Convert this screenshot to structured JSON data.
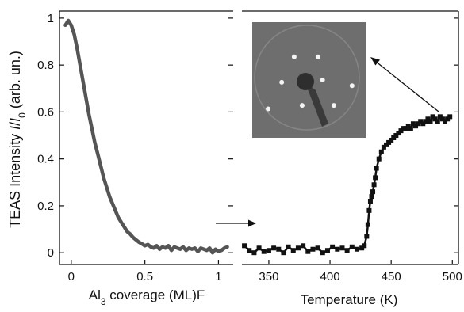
{
  "chart_data": [
    {
      "type": "line",
      "xlabel": "Al3 coverage (ML)F",
      "xlabel_parts": {
        "prefix": "Al",
        "subscript": "3",
        "suffix": " coverage (ML)F"
      },
      "ylabel": "TEAS Intensity  I/I0  (arb. un.)",
      "ylabel_parts": {
        "main": "TEAS Intensity  ",
        "I": "I",
        "slash": "/",
        "I0": "I",
        "sub0": "0",
        "unit": "  (arb. un.)"
      },
      "xlim": [
        -0.08,
        1.1
      ],
      "ylim": [
        -0.05,
        1.03
      ],
      "x_ticks": [
        0,
        0.5,
        1
      ],
      "x_tick_labels": [
        "0",
        "0.5",
        "1"
      ],
      "y_ticks": [
        0,
        0.2,
        0.4,
        0.6,
        0.8,
        1
      ],
      "y_tick_labels": [
        "0",
        "0.2",
        "0.4",
        "0.6",
        "0.8",
        "1"
      ],
      "color": "#555555",
      "series": [
        {
          "x": [
            -0.04,
            -0.02,
            0,
            0.02,
            0.04,
            0.06,
            0.08,
            0.1,
            0.12,
            0.14,
            0.16,
            0.18,
            0.2,
            0.22,
            0.24,
            0.26,
            0.28,
            0.3,
            0.32,
            0.34,
            0.36,
            0.38,
            0.4,
            0.42,
            0.44,
            0.46,
            0.48,
            0.5,
            0.52,
            0.54,
            0.56,
            0.58,
            0.6,
            0.62,
            0.64,
            0.66,
            0.68,
            0.7,
            0.72,
            0.74,
            0.76,
            0.78,
            0.8,
            0.82,
            0.84,
            0.86,
            0.88,
            0.9,
            0.92,
            0.94,
            0.96,
            0.98,
            1.0,
            1.02,
            1.04,
            1.06
          ],
          "y": [
            0.97,
            0.99,
            0.97,
            0.93,
            0.87,
            0.8,
            0.73,
            0.66,
            0.59,
            0.53,
            0.47,
            0.42,
            0.37,
            0.32,
            0.28,
            0.24,
            0.21,
            0.18,
            0.15,
            0.13,
            0.11,
            0.09,
            0.08,
            0.065,
            0.055,
            0.045,
            0.038,
            0.03,
            0.035,
            0.025,
            0.02,
            0.03,
            0.015,
            0.025,
            0.02,
            0.03,
            0.01,
            0.025,
            0.02,
            0.015,
            0.025,
            0.01,
            0.02,
            0.015,
            0.02,
            0.005,
            0.02,
            0.015,
            0.01,
            0.02,
            0.0,
            0.015,
            0.005,
            0.01,
            0.02,
            0.025
          ]
        }
      ]
    },
    {
      "type": "scatter",
      "xlabel": "Temperature (K)",
      "ylabel": "",
      "xlim": [
        328,
        505
      ],
      "ylim": [
        -0.05,
        1.03
      ],
      "x_ticks": [
        350,
        400,
        450,
        500
      ],
      "x_tick_labels": [
        "350",
        "400",
        "450",
        "500"
      ],
      "color": "#111111",
      "series": [
        {
          "x": [
            330,
            334,
            338,
            342,
            346,
            350,
            354,
            358,
            362,
            366,
            370,
            374,
            378,
            382,
            386,
            390,
            394,
            398,
            402,
            406,
            410,
            414,
            418,
            422,
            426,
            428,
            430,
            431,
            432,
            433,
            434,
            435,
            436,
            437,
            438,
            440,
            442,
            444,
            446,
            448,
            450,
            452,
            454,
            456,
            458,
            460,
            462,
            464,
            466,
            468,
            470,
            472,
            474,
            476,
            478,
            480,
            482,
            484,
            486,
            488,
            490,
            492,
            494,
            496,
            498
          ],
          "y": [
            0.03,
            0.01,
            0.0,
            0.02,
            0.005,
            0.01,
            0.02,
            0.015,
            0.0,
            0.025,
            0.01,
            0.02,
            0.03,
            0.005,
            0.015,
            0.02,
            0.0,
            0.01,
            0.025,
            0.015,
            0.02,
            0.01,
            0.025,
            0.015,
            0.02,
            0.03,
            0.07,
            0.12,
            0.18,
            0.22,
            0.24,
            0.26,
            0.29,
            0.32,
            0.36,
            0.4,
            0.43,
            0.45,
            0.46,
            0.47,
            0.48,
            0.49,
            0.5,
            0.51,
            0.52,
            0.53,
            0.53,
            0.54,
            0.53,
            0.55,
            0.54,
            0.55,
            0.56,
            0.55,
            0.56,
            0.57,
            0.56,
            0.58,
            0.57,
            0.56,
            0.58,
            0.57,
            0.56,
            0.57,
            0.58
          ]
        }
      ],
      "inset": {
        "description_type": "diffraction-pattern",
        "spots": [
          [
            0.37,
            0.3
          ],
          [
            0.58,
            0.3
          ],
          [
            0.26,
            0.52
          ],
          [
            0.62,
            0.5
          ],
          [
            0.14,
            0.75
          ],
          [
            0.44,
            0.72
          ],
          [
            0.72,
            0.72
          ],
          [
            0.88,
            0.55
          ]
        ]
      }
    }
  ]
}
